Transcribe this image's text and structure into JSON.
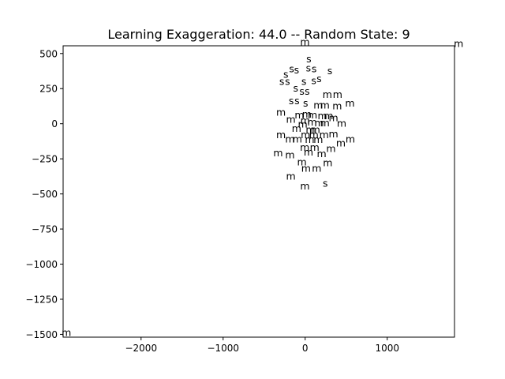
{
  "chart_data": {
    "type": "scatter",
    "title": "Learning Exaggeration: 44.0 -- Random State: 9",
    "xlabel": "",
    "ylabel": "",
    "xlim": [
      -2950,
      1820
    ],
    "ylim": [
      -1520,
      555
    ],
    "x_ticks": [
      -2000,
      -1000,
      0,
      1000
    ],
    "y_ticks": [
      500,
      250,
      0,
      -250,
      -500,
      -750,
      -1000,
      -1250,
      -1500
    ],
    "marker": "text",
    "grid": false,
    "legend": "none",
    "points": [
      {
        "x": -3,
        "y": 580,
        "label": "m"
      },
      {
        "x": 1870,
        "y": 570,
        "label": "m"
      },
      {
        "x": -2910,
        "y": -1490,
        "label": "m"
      },
      {
        "x": 45,
        "y": 460,
        "label": "s"
      },
      {
        "x": -165,
        "y": 390,
        "label": "s"
      },
      {
        "x": -105,
        "y": 380,
        "label": "s"
      },
      {
        "x": 40,
        "y": 395,
        "label": "s"
      },
      {
        "x": 110,
        "y": 390,
        "label": "s"
      },
      {
        "x": 300,
        "y": 375,
        "label": "s"
      },
      {
        "x": -235,
        "y": 350,
        "label": "s"
      },
      {
        "x": -285,
        "y": 300,
        "label": "s"
      },
      {
        "x": -215,
        "y": 300,
        "label": "s"
      },
      {
        "x": -15,
        "y": 300,
        "label": "s"
      },
      {
        "x": 105,
        "y": 305,
        "label": "s"
      },
      {
        "x": 170,
        "y": 320,
        "label": "s"
      },
      {
        "x": -115,
        "y": 250,
        "label": "s"
      },
      {
        "x": -40,
        "y": 230,
        "label": "s"
      },
      {
        "x": 25,
        "y": 230,
        "label": "s"
      },
      {
        "x": -170,
        "y": 160,
        "label": "s"
      },
      {
        "x": -100,
        "y": 160,
        "label": "s"
      },
      {
        "x": 5,
        "y": 145,
        "label": "s"
      },
      {
        "x": 270,
        "y": 205,
        "label": "m"
      },
      {
        "x": 395,
        "y": 205,
        "label": "m"
      },
      {
        "x": 545,
        "y": 145,
        "label": "m"
      },
      {
        "x": 160,
        "y": 130,
        "label": "m"
      },
      {
        "x": 240,
        "y": 130,
        "label": "m"
      },
      {
        "x": 390,
        "y": 125,
        "label": "m"
      },
      {
        "x": -295,
        "y": 80,
        "label": "m"
      },
      {
        "x": -70,
        "y": 60,
        "label": "m"
      },
      {
        "x": 20,
        "y": 65,
        "label": "m"
      },
      {
        "x": 90,
        "y": 60,
        "label": "m"
      },
      {
        "x": 210,
        "y": 55,
        "label": "m"
      },
      {
        "x": 285,
        "y": 55,
        "label": "m"
      },
      {
        "x": 345,
        "y": 40,
        "label": "m"
      },
      {
        "x": -175,
        "y": 30,
        "label": "m"
      },
      {
        "x": 0,
        "y": 20,
        "label": "m"
      },
      {
        "x": 85,
        "y": 10,
        "label": "m"
      },
      {
        "x": 170,
        "y": 5,
        "label": "m"
      },
      {
        "x": 240,
        "y": 5,
        "label": "m"
      },
      {
        "x": 445,
        "y": 0,
        "label": "m"
      },
      {
        "x": -30,
        "y": -5,
        "label": "m"
      },
      {
        "x": -105,
        "y": -35,
        "label": "m"
      },
      {
        "x": 65,
        "y": -45,
        "label": "m"
      },
      {
        "x": 125,
        "y": -45,
        "label": "m"
      },
      {
        "x": -295,
        "y": -80,
        "label": "m"
      },
      {
        "x": 5,
        "y": -80,
        "label": "m"
      },
      {
        "x": 105,
        "y": -80,
        "label": "m"
      },
      {
        "x": 230,
        "y": -80,
        "label": "m"
      },
      {
        "x": 345,
        "y": -75,
        "label": "m"
      },
      {
        "x": -185,
        "y": -110,
        "label": "m"
      },
      {
        "x": -95,
        "y": -110,
        "label": "m"
      },
      {
        "x": 55,
        "y": -115,
        "label": "m"
      },
      {
        "x": 160,
        "y": -115,
        "label": "m"
      },
      {
        "x": 550,
        "y": -110,
        "label": "m"
      },
      {
        "x": 435,
        "y": -140,
        "label": "m"
      },
      {
        "x": -5,
        "y": -170,
        "label": "m"
      },
      {
        "x": 115,
        "y": -170,
        "label": "m"
      },
      {
        "x": 315,
        "y": -180,
        "label": "m"
      },
      {
        "x": -330,
        "y": -210,
        "label": "m"
      },
      {
        "x": -185,
        "y": -225,
        "label": "m"
      },
      {
        "x": 40,
        "y": -205,
        "label": "m"
      },
      {
        "x": 200,
        "y": -215,
        "label": "m"
      },
      {
        "x": -40,
        "y": -275,
        "label": "m"
      },
      {
        "x": 275,
        "y": -280,
        "label": "m"
      },
      {
        "x": 10,
        "y": -320,
        "label": "m"
      },
      {
        "x": 140,
        "y": -320,
        "label": "m"
      },
      {
        "x": -175,
        "y": -375,
        "label": "m"
      },
      {
        "x": -3,
        "y": -445,
        "label": "m"
      },
      {
        "x": 245,
        "y": -425,
        "label": "s"
      }
    ]
  }
}
